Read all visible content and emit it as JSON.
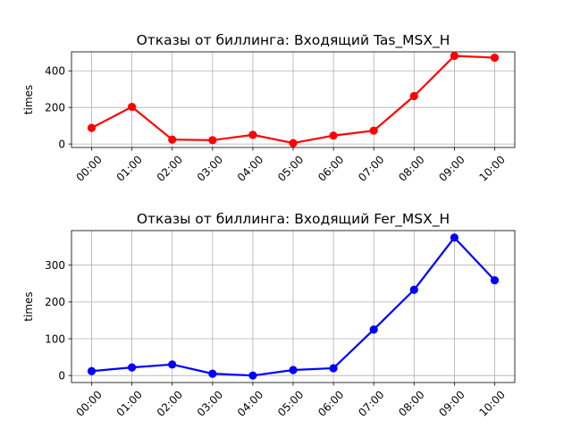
{
  "chart_data": [
    {
      "type": "line",
      "title": "Отказы от биллинга: Входящий Tas_MSX_H",
      "xlabel": "",
      "ylabel": "times",
      "categories": [
        "00:00",
        "01:00",
        "02:00",
        "03:00",
        "04:00",
        "05:00",
        "06:00",
        "07:00",
        "08:00",
        "09:00",
        "10:00"
      ],
      "yticks": [
        0,
        200,
        400
      ],
      "ylim": [
        -19,
        504
      ],
      "grid": true,
      "color": "#ff0000",
      "marker": "circle",
      "series": [
        {
          "values": [
            88,
            203,
            24,
            21,
            50,
            5,
            46,
            73,
            262,
            482,
            472
          ]
        }
      ]
    },
    {
      "type": "line",
      "title": "Отказы от биллинга: Входящий Fer_MSX_H",
      "xlabel": "",
      "ylabel": "times",
      "categories": [
        "00:00",
        "01:00",
        "02:00",
        "03:00",
        "04:00",
        "05:00",
        "06:00",
        "07:00",
        "08:00",
        "09:00",
        "10:00"
      ],
      "yticks": [
        0,
        100,
        200,
        300
      ],
      "ylim": [
        -19,
        394
      ],
      "grid": true,
      "color": "#0000ff",
      "marker": "circle",
      "series": [
        {
          "values": [
            12,
            22,
            30,
            5,
            0,
            15,
            20,
            125,
            233,
            375,
            259
          ]
        }
      ]
    }
  ]
}
